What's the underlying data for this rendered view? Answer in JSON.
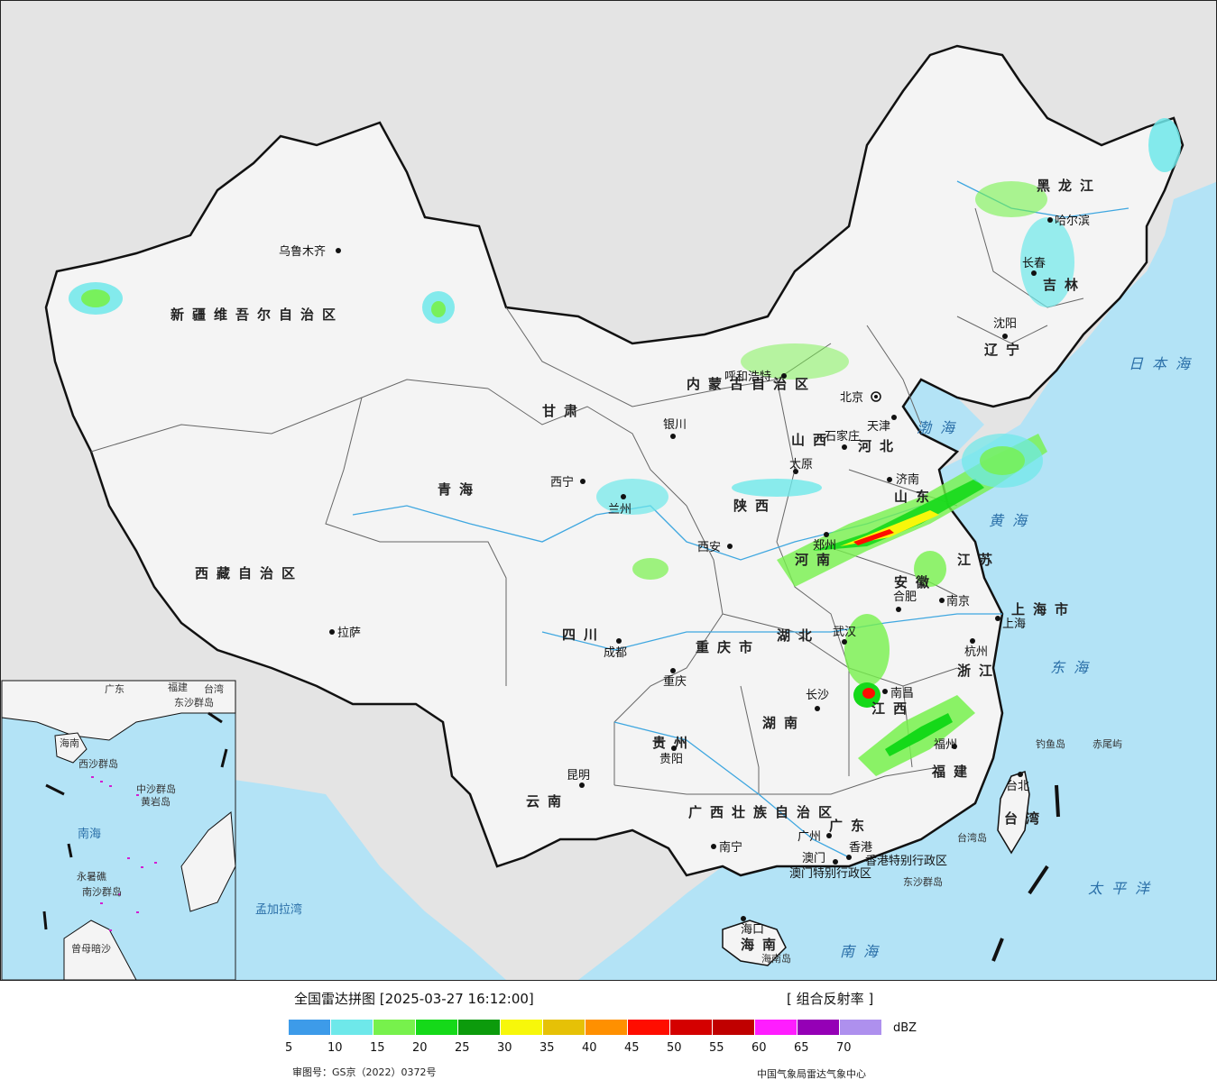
{
  "map": {
    "provinces": [
      "新疆维吾尔自治区",
      "西藏自治区",
      "青海",
      "甘肃",
      "内蒙古自治区",
      "黑龙江",
      "吉林",
      "辽宁",
      "河北",
      "山西",
      "陕西",
      "四川",
      "云南",
      "贵州",
      "广西壮族自治区",
      "广东",
      "湖南",
      "湖北",
      "河南",
      "山东",
      "江苏",
      "安徽",
      "浙江",
      "江西",
      "福建",
      "台湾",
      "海南",
      "重庆市",
      "上海市"
    ],
    "cities": [
      "乌鲁木齐",
      "拉萨",
      "西宁",
      "兰州",
      "银川",
      "呼和浩特",
      "北京",
      "天津",
      "石家庄",
      "太原",
      "济南",
      "郑州",
      "西安",
      "成都",
      "重庆",
      "武汉",
      "合肥",
      "南京",
      "上海",
      "杭州",
      "长沙",
      "南昌",
      "福州",
      "贵阳",
      "昆明",
      "南宁",
      "广州",
      "香港",
      "澳门",
      "海口",
      "台北",
      "沈阳",
      "长春",
      "哈尔滨"
    ],
    "seas": [
      "渤海",
      "黄海",
      "东海",
      "日本海",
      "太平洋",
      "南海",
      "孟加拉湾"
    ],
    "islands": [
      "钓鱼岛",
      "赤尾屿",
      "台湾岛",
      "东沙群岛",
      "海南岛",
      "香港特别行政区",
      "澳门特别行政区"
    ],
    "inset": {
      "labels": [
        "南海",
        "西沙群岛",
        "中沙群岛",
        "南沙群岛",
        "黄岩岛",
        "永暑礁",
        "曾母暗沙",
        "海南",
        "东沙群岛",
        "台湾",
        "广东",
        "福建"
      ]
    },
    "colors": {
      "ocean": "#b3e3f6",
      "land": "#f4f4f4",
      "outside": "#e4e4e4",
      "border": "#111111"
    }
  },
  "legend": {
    "title": "全国雷达拼图 [2025-03-27 16:12:00]",
    "product": "[ 组合反射率 ]",
    "unit": "dBZ",
    "ticks": [
      "5",
      "10",
      "15",
      "20",
      "25",
      "30",
      "35",
      "40",
      "45",
      "50",
      "55",
      "60",
      "65",
      "70"
    ],
    "colors": [
      "#3d9be9",
      "#6ee8ea",
      "#77f14c",
      "#15d919",
      "#0c9b0c",
      "#f7f70a",
      "#e6c106",
      "#ff9000",
      "#ff0d00",
      "#d40000",
      "#c00000",
      "#ff1dff",
      "#9500b6",
      "#ae90ee"
    ],
    "review_no": "审图号：GS京（2022）0372号",
    "source_org": "中国气象局雷达气象中心"
  }
}
